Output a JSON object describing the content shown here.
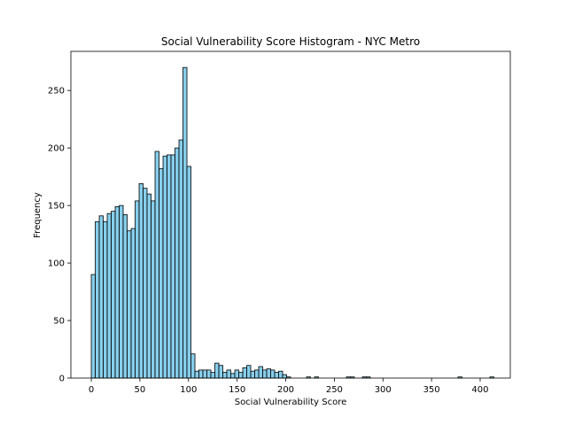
{
  "chart_data": {
    "type": "bar",
    "title": "Social Vulnerability Score Histogram - NYC Metro",
    "xlabel": "Social Vulnerability Score",
    "ylabel": "Frequency",
    "xlim": [
      -21,
      431
    ],
    "ylim": [
      0,
      284
    ],
    "xticks": [
      0,
      50,
      100,
      150,
      200,
      250,
      300,
      350,
      400
    ],
    "yticks": [
      0,
      50,
      100,
      150,
      200,
      250
    ],
    "bin_width": 4.1,
    "bin_start": 0,
    "grid": false,
    "legend": "none",
    "bar_color": "#87CEEB",
    "edge_color": "#000000",
    "values": [
      90,
      136,
      141,
      136,
      143,
      145,
      149,
      150,
      142,
      128,
      130,
      154,
      169,
      165,
      160,
      154,
      197,
      182,
      193,
      194,
      194,
      200,
      207,
      270,
      184,
      21,
      6,
      7,
      7,
      7,
      5,
      13,
      11,
      5,
      7,
      4,
      7,
      5,
      9,
      11,
      6,
      7,
      10,
      7,
      8,
      7,
      5,
      6,
      3,
      1,
      0,
      0,
      0,
      0,
      1,
      0,
      1,
      0,
      0,
      0,
      0,
      0,
      0,
      0,
      1,
      1,
      0,
      0,
      1,
      1,
      0,
      0,
      0,
      0,
      0,
      0,
      0,
      0,
      0,
      0,
      0,
      0,
      0,
      0,
      0,
      0,
      0,
      0,
      0,
      0,
      0,
      0,
      1,
      0,
      0,
      0,
      0,
      0,
      0,
      0,
      1
    ]
  }
}
